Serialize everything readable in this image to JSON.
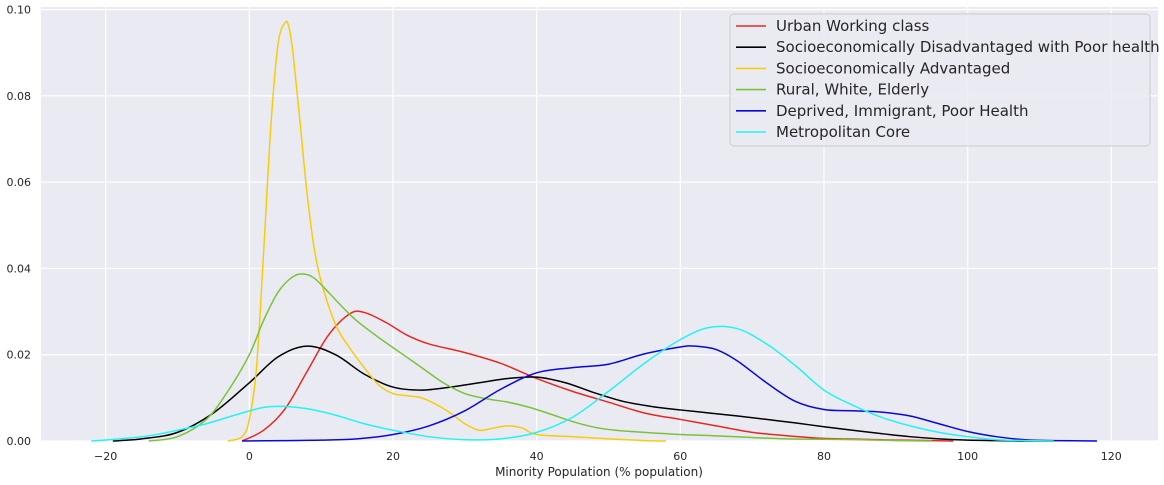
{
  "chart_data": {
    "type": "line",
    "title": "",
    "xlabel": "Minority Population (% population)",
    "ylabel": "",
    "xlim": [
      -29,
      126.5
    ],
    "ylim": [
      0,
      0.1006
    ],
    "xticks": [
      -20,
      0,
      20,
      40,
      60,
      80,
      100,
      120
    ],
    "yticks": [
      0.0,
      0.02,
      0.04,
      0.06,
      0.08,
      0.1
    ],
    "xtick_labels": [
      "−20",
      "0",
      "20",
      "40",
      "60",
      "80",
      "100",
      "120"
    ],
    "ytick_labels": [
      "0.00",
      "0.02",
      "0.04",
      "0.06",
      "0.08",
      "0.10"
    ],
    "grid": true,
    "background": "#eaeaf2",
    "legend_position": "top-right",
    "series": [
      {
        "name": "Urban Working class",
        "color": "#e8281f",
        "x": [
          -1,
          2,
          5,
          8,
          11,
          14,
          16,
          19,
          22,
          25,
          30,
          35,
          40,
          45,
          50,
          55,
          60,
          65,
          70,
          75,
          80,
          85,
          90,
          95,
          98
        ],
        "y": [
          0.0,
          0.0025,
          0.0075,
          0.016,
          0.0245,
          0.0295,
          0.0298,
          0.0275,
          0.0245,
          0.0225,
          0.0205,
          0.018,
          0.0145,
          0.0115,
          0.009,
          0.0065,
          0.005,
          0.0035,
          0.002,
          0.0012,
          0.0006,
          0.0004,
          0.0002,
          0.0001,
          0.0
        ]
      },
      {
        "name": "Socioeconomically Disadvantaged with Poor health",
        "color": "#000000",
        "x": [
          -19,
          -15,
          -10,
          -5,
          0,
          4,
          8,
          12,
          16,
          20,
          24,
          28,
          32,
          36,
          40,
          44,
          48,
          52,
          56,
          60,
          64,
          68,
          72,
          76,
          80,
          84,
          88,
          92,
          96,
          100,
          104,
          108,
          112
        ],
        "y": [
          0.0,
          0.0005,
          0.002,
          0.0065,
          0.0135,
          0.0195,
          0.022,
          0.02,
          0.0155,
          0.0125,
          0.0118,
          0.0125,
          0.0135,
          0.0145,
          0.0148,
          0.0135,
          0.0112,
          0.0092,
          0.008,
          0.0072,
          0.0065,
          0.0058,
          0.005,
          0.0042,
          0.0033,
          0.0025,
          0.0017,
          0.001,
          0.0005,
          0.0002,
          0.0001,
          0.0,
          0.0
        ]
      },
      {
        "name": "Socioeconomically Advantaged",
        "color": "#f8cc0b",
        "x": [
          -3,
          -1,
          0,
          1,
          2,
          3,
          4,
          5,
          5.5,
          6,
          7,
          8,
          9,
          10,
          12,
          14,
          16,
          18,
          20,
          22,
          24,
          26,
          28,
          30,
          32,
          34,
          36,
          38,
          40,
          45,
          50,
          55,
          58
        ],
        "y": [
          0.0,
          0.001,
          0.005,
          0.017,
          0.044,
          0.073,
          0.092,
          0.097,
          0.096,
          0.091,
          0.075,
          0.058,
          0.045,
          0.037,
          0.027,
          0.0215,
          0.017,
          0.013,
          0.011,
          0.0105,
          0.01,
          0.0085,
          0.0065,
          0.004,
          0.0025,
          0.003,
          0.0035,
          0.003,
          0.0015,
          0.001,
          0.0005,
          0.0001,
          0.0
        ]
      },
      {
        "name": "Rural, White, Elderly",
        "color": "#7ac337",
        "x": [
          -14,
          -10,
          -6,
          -3,
          0,
          2,
          4,
          6,
          7.5,
          9,
          11,
          13,
          15,
          18,
          21,
          24,
          27,
          30,
          33,
          36,
          39,
          42,
          45,
          48,
          51,
          55,
          60,
          65,
          70,
          75,
          80,
          85,
          90,
          95
        ],
        "y": [
          0.0,
          0.001,
          0.005,
          0.0115,
          0.02,
          0.028,
          0.0345,
          0.038,
          0.0387,
          0.0378,
          0.0345,
          0.031,
          0.0278,
          0.024,
          0.0205,
          0.017,
          0.0135,
          0.011,
          0.0098,
          0.009,
          0.0078,
          0.0062,
          0.0045,
          0.0032,
          0.0025,
          0.002,
          0.0015,
          0.0012,
          0.0008,
          0.0005,
          0.0004,
          0.0003,
          0.0001,
          0.0
        ]
      },
      {
        "name": "Deprived, Immigrant, Poor Health",
        "color": "#0a08d8",
        "x": [
          -1,
          5,
          10,
          15,
          20,
          25,
          30,
          35,
          40,
          45,
          50,
          55,
          60,
          62,
          65,
          68,
          72,
          76,
          80,
          84,
          88,
          92,
          96,
          100,
          104,
          108,
          112,
          118
        ],
        "y": [
          0.0,
          0.0001,
          0.0002,
          0.0005,
          0.0015,
          0.0035,
          0.007,
          0.012,
          0.0158,
          0.017,
          0.0178,
          0.0202,
          0.0218,
          0.022,
          0.0212,
          0.0185,
          0.0135,
          0.0092,
          0.0073,
          0.007,
          0.0067,
          0.0058,
          0.004,
          0.0022,
          0.001,
          0.0003,
          0.0001,
          0.0
        ]
      },
      {
        "name": "Metropolitan Core",
        "color": "#21f4f4",
        "x": [
          -22,
          -18,
          -14,
          -10,
          -6,
          -2,
          2,
          5,
          8,
          12,
          16,
          20,
          25,
          30,
          35,
          40,
          45,
          50,
          55,
          60,
          64,
          68,
          72,
          76,
          80,
          84,
          88,
          92,
          96,
          100,
          104,
          108,
          112
        ],
        "y": [
          0.0,
          0.0005,
          0.0012,
          0.0025,
          0.004,
          0.006,
          0.0078,
          0.008,
          0.0075,
          0.006,
          0.004,
          0.0025,
          0.001,
          0.0003,
          0.0005,
          0.002,
          0.0055,
          0.0115,
          0.018,
          0.0235,
          0.0263,
          0.026,
          0.0225,
          0.0175,
          0.0118,
          0.0083,
          0.0055,
          0.0035,
          0.002,
          0.001,
          0.0003,
          0.0001,
          0.0
        ]
      }
    ]
  }
}
